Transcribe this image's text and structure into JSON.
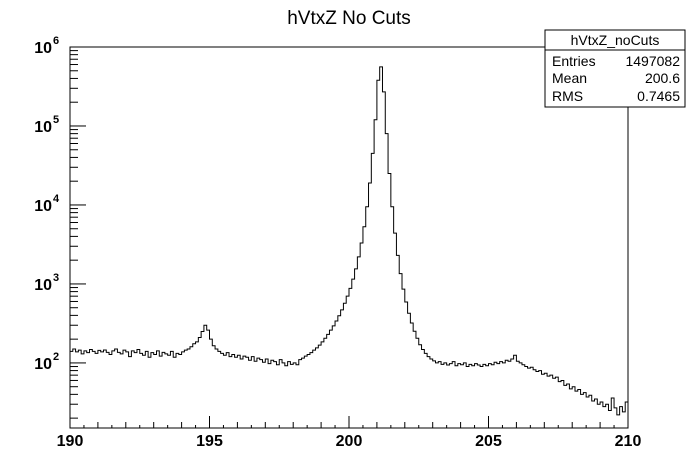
{
  "chart_data": {
    "type": "histogram",
    "title": "hVtxZ No Cuts",
    "xlabel": "",
    "ylabel": "",
    "xlim": [
      190,
      210
    ],
    "ylim": [
      15,
      1000000
    ],
    "yscale": "log",
    "grid": false,
    "x_ticks": [
      {
        "value": 190,
        "label": "190"
      },
      {
        "value": 195,
        "label": "195"
      },
      {
        "value": 200,
        "label": "200"
      },
      {
        "value": 205,
        "label": "205"
      },
      {
        "value": 210,
        "label": "210"
      }
    ],
    "y_ticks": [
      {
        "value": 100,
        "base": "10",
        "exp": "2"
      },
      {
        "value": 1000,
        "base": "10",
        "exp": "3"
      },
      {
        "value": 10000,
        "base": "10",
        "exp": "4"
      },
      {
        "value": 100000,
        "base": "10",
        "exp": "5"
      },
      {
        "value": 1000000,
        "base": "10",
        "exp": "6"
      }
    ],
    "series": [
      {
        "bin_edges": [
          190,
          210
        ],
        "values": [
          140,
          150,
          138,
          145,
          130,
          142,
          135,
          148,
          140,
          132,
          144,
          138,
          146,
          136,
          128,
          142,
          150,
          136,
          130,
          145,
          138,
          120,
          142,
          135,
          148,
          132,
          125,
          140,
          118,
          135,
          128,
          142,
          122,
          136,
          130,
          125,
          140,
          118,
          132,
          128,
          138,
          145,
          150,
          160,
          175,
          185,
          210,
          250,
          300,
          260,
          200,
          165,
          150,
          140,
          132,
          125,
          135,
          120,
          128,
          118,
          125,
          112,
          122,
          118,
          108,
          120,
          105,
          115,
          110,
          102,
          112,
          98,
          108,
          104,
          95,
          110,
          100,
          92,
          104,
          96,
          100,
          95,
          110,
          115,
          122,
          128,
          135,
          145,
          155,
          168,
          185,
          205,
          230,
          260,
          295,
          340,
          395,
          470,
          570,
          700,
          880,
          1150,
          1550,
          2200,
          3300,
          5300,
          9500,
          19000,
          45000,
          120000,
          380000,
          560000,
          270000,
          80000,
          25000,
          9500,
          4400,
          2300,
          1350,
          860,
          590,
          425,
          320,
          252,
          205,
          170,
          148,
          132,
          120,
          112,
          106,
          100,
          104,
          96,
          100,
          94,
          98,
          104,
          92,
          98,
          95,
          100,
          90,
          96,
          92,
          98,
          94,
          90,
          96,
          92,
          98,
          95,
          102,
          98,
          104,
          100,
          108,
          105,
          112,
          125,
          105,
          100,
          95,
          90,
          86,
          88,
          82,
          78,
          80,
          72,
          74,
          68,
          70,
          64,
          66,
          58,
          60,
          52,
          54,
          47,
          50,
          44,
          46,
          40,
          42,
          37,
          39,
          33,
          35,
          30,
          32,
          28,
          30,
          25,
          36,
          27,
          22,
          28,
          24,
          32
        ]
      }
    ]
  },
  "stats_box": {
    "title": "hVtxZ_noCuts",
    "rows": [
      {
        "label": "Entries",
        "value": "1497082"
      },
      {
        "label": "Mean",
        "value": "200.6"
      },
      {
        "label": "RMS",
        "value": "0.7465"
      }
    ]
  }
}
